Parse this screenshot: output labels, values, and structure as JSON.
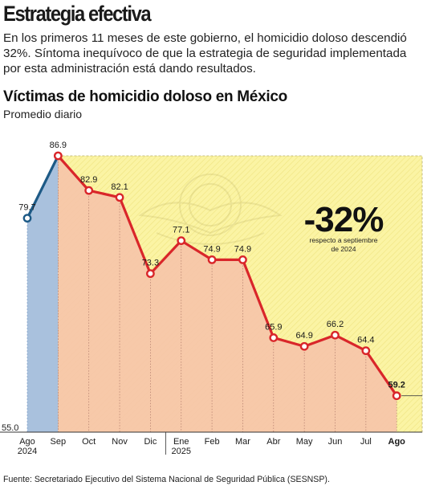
{
  "header": {
    "headline": "Estrategia efectiva",
    "deck": "En los primeros 11 meses de este gobierno, el homicidio doloso descendió 32%. Síntoma inequívoco de que la  estrategia de seguridad implementada por esta administración está dando resultados."
  },
  "chart_data": {
    "type": "line",
    "title": "Víctimas de homicidio doloso en México",
    "subtitle": "Promedio diario",
    "categories": [
      "Ago\n2024",
      "Sep",
      "Oct",
      "Nov",
      "Dic",
      "Ene\n2025",
      "Feb",
      "Mar",
      "Abr",
      "May",
      "Jun",
      "Jul",
      "Ago"
    ],
    "series": [
      {
        "values": [
          79.7,
          86.9,
          82.9,
          82.1,
          73.3,
          77.1,
          74.9,
          74.9,
          65.9,
          64.9,
          66.2,
          64.4,
          59.2
        ]
      }
    ],
    "data_labels": [
      "79.7",
      "86.9",
      "82.9",
      "82.1",
      "73.3",
      "77.1",
      "74.9",
      "74.9",
      "65.9",
      "64.9",
      "66.2",
      "64.4",
      "59.2"
    ],
    "ylim": [
      55.0,
      86.9
    ],
    "y_min_label": "55.0",
    "annotation": {
      "big": "-32%",
      "small_line1": "respecto a septiembre",
      "small_line2": "de 2024"
    },
    "colors": {
      "line_before": "#1d5a86",
      "line_after": "#d9262a",
      "fill_before": "#a9c1dd",
      "fill_after": "#f6c4a9",
      "panel_yellow": "#fbf4a4",
      "marker_face": "#ffffff"
    },
    "grid": false
  },
  "source": "Fuente: Secretariado Ejecutivo del Sistema Nacional de Seguridad Pública (SESNSP)."
}
